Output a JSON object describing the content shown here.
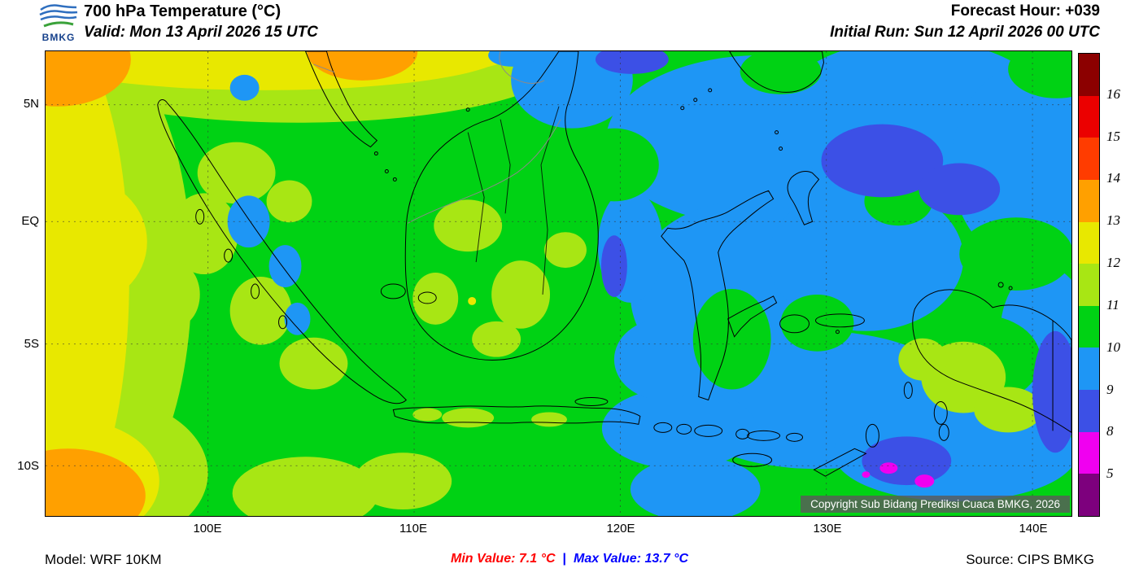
{
  "header": {
    "logo_text": "BMKG",
    "title": "700 hPa Temperature (°C)",
    "valid_line": "Valid: Mon 13 April 2026 15 UTC",
    "forecast_hour": "Forecast Hour: +039",
    "initial_run": "Initial Run: Sun 12 April 2026 00 UTC"
  },
  "map": {
    "lat_labels": [
      "5N",
      "EQ",
      "5S",
      "10S"
    ],
    "lon_labels": [
      "100E",
      "110E",
      "120E",
      "130E",
      "140E"
    ],
    "copyright": "Copyright Sub Bidang Prediksi Cuaca BMKG, 2026"
  },
  "colorbar": {
    "tick_labels": [
      "16",
      "15",
      "14",
      "13",
      "12",
      "11",
      "10",
      "9",
      "8",
      "5"
    ],
    "segment_colors": [
      "#8C0000",
      "#EB0000",
      "#FF3C00",
      "#FFA000",
      "#E8E800",
      "#A8E614",
      "#00D214",
      "#1E96F5",
      "#3C50E6",
      "#F000F0",
      "#7D007D"
    ]
  },
  "footer": {
    "model": "Model: WRF 10KM",
    "min_label": "Min Value:",
    "min_value": "7.1 °C",
    "divider": "|",
    "max_label": "Max Value:",
    "max_value": "13.7 °C",
    "source": "Source: CIPS BMKG",
    "min_color": "#FF0000",
    "max_color": "#0000FF"
  }
}
